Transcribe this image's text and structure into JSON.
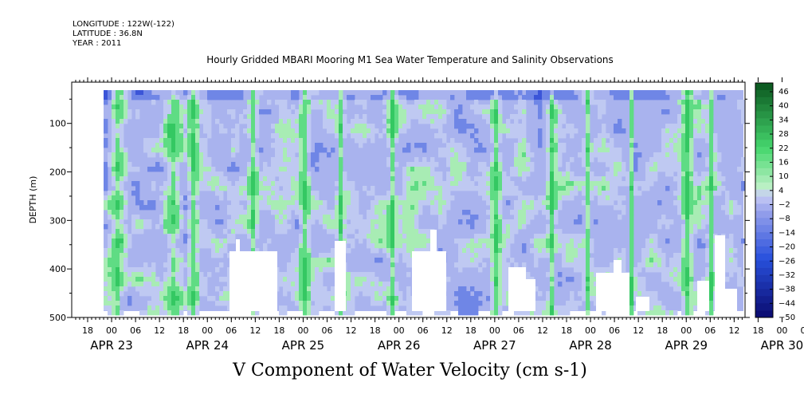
{
  "header": {
    "longitude": "LONGITUDE : 122W(-122)",
    "latitude": "LATITUDE : 36.8N",
    "year": "YEAR : 2011"
  },
  "chart_data": {
    "type": "heatmap",
    "title": "Hourly Gridded MBARI Mooring M1 Sea Water Temperature and Salinity Observations",
    "xlabel": "V Component of Water Velocity (cm s-1)",
    "ylabel": "DEPTH (m)",
    "ylim": [
      0,
      500
    ],
    "y_inverted": true,
    "yticks": [
      100,
      200,
      300,
      400,
      500
    ],
    "hour_ticks": [
      "18",
      "00",
      "06",
      "12",
      "18",
      "00",
      "06",
      "12",
      "18",
      "00",
      "06",
      "12",
      "18",
      "00",
      "06",
      "12",
      "18",
      "00",
      "06",
      "12",
      "18",
      "00",
      "06",
      "12",
      "18",
      "00",
      "06",
      "12",
      "18",
      "00",
      "06",
      "12"
    ],
    "date_labels": [
      "APR 23",
      "APR 24",
      "APR 25",
      "APR 26",
      "APR 27",
      "APR 28",
      "APR 29",
      "APR 30"
    ],
    "colorbar": {
      "labels": [
        46,
        40,
        34,
        28,
        22,
        16,
        10,
        4,
        -2,
        -8,
        -14,
        -20,
        -26,
        -32,
        -38,
        -44,
        -50
      ],
      "range": [
        -50,
        50
      ],
      "interval": 3
    },
    "dominant_range": [
      -20,
      10
    ],
    "colors": {
      "deep_negative": "#0a0a6e",
      "negative": "#2f5ee0",
      "near_zero_negative": "#a9b3ee",
      "near_zero_positive": "#bfeec6",
      "positive": "#3fd86a",
      "deep_positive": "#0a5a1e",
      "missing": "#ffffff"
    }
  }
}
